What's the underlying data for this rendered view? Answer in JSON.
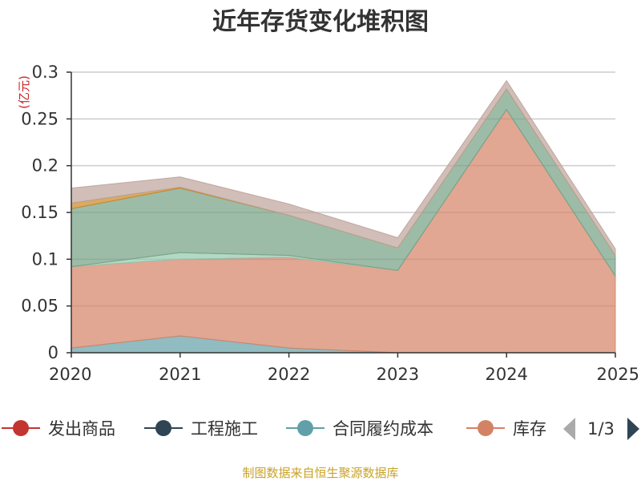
{
  "chart_data": {
    "type": "area",
    "stacked": true,
    "title": "近年存货变化堆积图",
    "unit_label": "(亿元)",
    "x": [
      "2020",
      "2021",
      "2022",
      "2023",
      "2024",
      "2025"
    ],
    "ylim": [
      0,
      0.3
    ],
    "y_ticks": [
      "0",
      "0.05",
      "0.1",
      "0.15",
      "0.2",
      "0.25",
      "0.3"
    ],
    "grid": true,
    "series": [
      {
        "name": "合同履约成本",
        "color": "#61a0a8",
        "values": [
          0.005,
          0.018,
          0.005,
          0.0,
          0.0,
          0.0
        ]
      },
      {
        "name": "库存",
        "color": "#d48265",
        "values": [
          0.087,
          0.082,
          0.097,
          0.088,
          0.26,
          0.082
        ]
      },
      {
        "name": "",
        "color": "#91c7ae",
        "values": [
          0.0,
          0.007,
          0.002,
          0.0,
          0.0,
          0.0
        ]
      },
      {
        "name": "",
        "color": "#749f83",
        "values": [
          0.062,
          0.069,
          0.043,
          0.024,
          0.022,
          0.022
        ]
      },
      {
        "name": "",
        "color": "#ca8622",
        "values": [
          0.006,
          0.001,
          0.0,
          0.0,
          0.0,
          0.0
        ]
      },
      {
        "name": "",
        "color": "#bda29a",
        "values": [
          0.016,
          0.011,
          0.012,
          0.011,
          0.009,
          0.007
        ]
      }
    ],
    "legend": {
      "placement": "bottom",
      "items": [
        {
          "name": "发出商品",
          "color": "#c23531"
        },
        {
          "name": "工程施工",
          "color": "#2f4554"
        },
        {
          "name": "合同履约成本",
          "color": "#61a0a8"
        },
        {
          "name": "库存",
          "color": "#d48265"
        }
      ],
      "page": "1/3"
    },
    "source": "制图数据来自恒生聚源数据库"
  }
}
